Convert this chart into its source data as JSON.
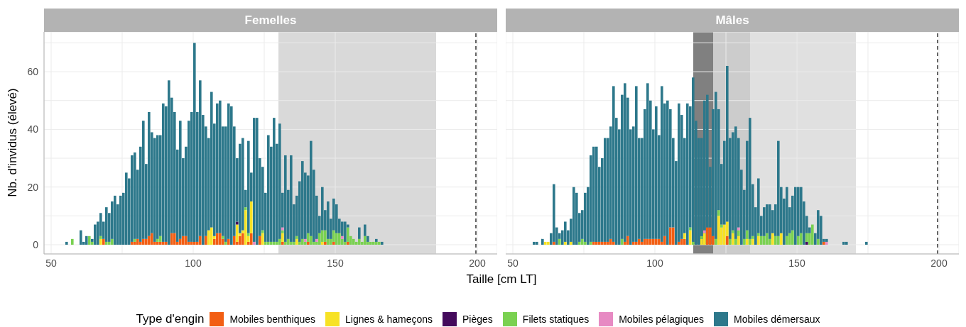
{
  "chart_data": [
    {
      "type": "bar",
      "title": "Femelles",
      "xlabel": "Taille [cm LT]",
      "ylabel": "Nb. d'invidus (élevé)",
      "legend": "bottom",
      "legend_title": "Type d'engin",
      "stacked": true,
      "grid": true,
      "x": [
        55.5,
        56.5,
        57.5,
        58.5,
        59.5,
        60.5,
        61.5,
        62.5,
        63.5,
        64.5,
        65.5,
        66.5,
        67.5,
        68.5,
        69.5,
        70.5,
        71.5,
        72.5,
        73.5,
        74.5,
        75.5,
        76.5,
        77.5,
        78.5,
        79.5,
        80.5,
        81.5,
        82.5,
        83.5,
        84.5,
        85.5,
        86.5,
        87.5,
        88.5,
        89.5,
        90.5,
        91.5,
        92.5,
        93.5,
        94.5,
        95.5,
        96.5,
        97.5,
        98.5,
        99.5,
        100.5,
        101.5,
        102.5,
        103.5,
        104.5,
        105.5,
        106.5,
        107.5,
        108.5,
        109.5,
        110.5,
        111.5,
        112.5,
        113.5,
        114.5,
        115.5,
        116.5,
        117.5,
        118.5,
        119.5,
        120.5,
        121.5,
        122.5,
        123.5,
        124.5,
        125.5,
        126.5,
        127.5,
        128.5,
        129.5,
        130.5,
        131.5,
        132.5,
        133.5,
        134.5,
        135.5,
        136.5,
        137.5,
        138.5,
        139.5,
        140.5,
        141.5,
        142.5,
        143.5,
        144.5,
        145.5,
        146.5,
        147.5,
        148.5,
        149.5,
        150.5,
        151.5,
        152.5,
        153.5,
        154.5,
        155.5,
        156.5,
        157.5,
        158.5,
        159.5,
        160.5,
        161.5,
        162.5,
        163.5,
        164.5,
        165.5,
        166.5
      ],
      "xlim": [
        47.5,
        207
      ],
      "xticks": [
        50,
        {
          "value": 75,
          "label": null
        },
        100,
        {
          "value": 125,
          "label": null
        },
        150,
        200
      ],
      "ylim": [
        -3.2,
        73.8
      ],
      "yticks": [
        0,
        {
          "value": 10,
          "label": null
        },
        20,
        {
          "value": 30,
          "label": null
        },
        40,
        {
          "value": 50,
          "label": null
        },
        60,
        {
          "value": 70,
          "label": null
        }
      ],
      "bands": [
        {
          "axis": "x",
          "from": 130,
          "to": 185.5,
          "color": "#d9d9d9"
        }
      ],
      "ref_lines": [
        {
          "axis": "x",
          "value": 199.5,
          "color": "#333333",
          "line_style": "dashed"
        }
      ],
      "series": [
        {
          "name": "Mobiles benthiques",
          "color": "#f25e13",
          "values": [
            0,
            0,
            0,
            0,
            0,
            0,
            0,
            0,
            0,
            0,
            0,
            0,
            0,
            2,
            0,
            0,
            0,
            0,
            0,
            0,
            0,
            0,
            0,
            1,
            1,
            2,
            1,
            2,
            2,
            3,
            4,
            1,
            1,
            1,
            1,
            1,
            0,
            4,
            4,
            1,
            2,
            3,
            3,
            1,
            1,
            1,
            1,
            3,
            0,
            3,
            0,
            0,
            2,
            4,
            4,
            2,
            0,
            2,
            0,
            3,
            1,
            3,
            4,
            0,
            1,
            4,
            0,
            0,
            3,
            0,
            0,
            0,
            0,
            0,
            0,
            0,
            1,
            0,
            0,
            0,
            0,
            0,
            0,
            0,
            0,
            1,
            0,
            0,
            0,
            0,
            0,
            1,
            0,
            0,
            1,
            0,
            0,
            0,
            0,
            1,
            0,
            0,
            0,
            0,
            0,
            0,
            0,
            0,
            0,
            0,
            0,
            0
          ]
        },
        {
          "name": "Lignes & hameçons",
          "color": "#f7e225",
          "values": [
            0,
            0,
            0,
            0,
            0,
            0,
            0,
            0,
            0,
            0,
            0,
            0,
            2,
            0,
            0,
            0,
            0,
            0,
            0,
            0,
            0,
            0,
            0,
            0,
            0,
            0,
            0,
            0,
            0,
            0,
            0,
            0,
            0,
            0,
            0,
            0,
            0,
            0,
            0,
            0,
            0,
            0,
            0,
            0,
            0,
            0,
            0,
            0,
            0,
            0,
            5,
            6,
            1,
            0,
            0,
            0,
            0,
            0,
            0,
            0,
            6,
            1,
            1,
            12,
            2,
            11,
            0,
            0,
            0,
            4,
            0,
            0,
            0,
            0,
            0,
            0,
            3,
            0,
            0,
            0,
            0,
            2,
            0,
            0,
            0,
            0,
            0,
            0,
            0,
            0,
            1,
            0,
            0,
            0,
            0,
            0,
            0,
            0,
            0,
            0,
            0,
            0,
            0,
            0,
            0,
            0,
            0,
            0,
            0,
            0,
            0,
            0
          ]
        },
        {
          "name": "Pièges",
          "color": "#440a5c",
          "values": [
            0,
            0,
            0,
            0,
            0,
            0,
            0,
            0,
            0,
            0,
            0,
            0,
            0,
            0,
            0,
            0,
            0,
            0,
            0,
            0,
            0,
            0,
            0,
            0,
            0,
            0,
            0,
            0,
            0,
            0,
            0,
            0,
            0,
            0,
            0,
            0,
            0,
            0,
            0,
            0,
            0,
            0,
            0,
            0,
            0,
            0,
            0,
            0,
            0,
            0,
            0,
            0,
            0,
            0,
            0,
            0,
            0,
            0,
            0,
            0,
            1,
            0,
            0,
            0,
            0,
            0,
            0,
            0,
            0,
            0,
            0,
            0,
            0,
            0,
            0,
            0,
            0,
            0,
            0,
            0,
            0,
            0,
            0,
            0,
            0,
            0,
            0,
            0,
            0,
            0,
            0,
            0,
            0,
            0,
            0,
            0,
            0,
            0,
            0,
            0,
            0,
            0,
            0,
            0,
            0,
            0,
            0,
            0,
            0,
            0,
            0,
            0
          ]
        },
        {
          "name": "Filets statiques",
          "color": "#7ad151",
          "values": [
            0,
            0,
            2,
            0,
            0,
            0,
            0,
            0,
            3,
            1,
            0,
            0,
            1,
            0,
            1,
            1,
            2,
            0,
            0,
            0,
            0,
            0,
            0,
            0,
            1,
            0,
            0,
            0,
            0,
            0,
            0,
            0,
            1,
            2,
            0,
            0,
            0,
            0,
            0,
            0,
            0,
            0,
            0,
            0,
            0,
            0,
            0,
            0,
            0,
            0,
            0,
            0,
            0,
            0,
            0,
            1,
            1,
            0,
            0,
            0,
            0,
            0,
            0,
            1,
            1,
            0,
            0,
            0,
            0,
            1,
            1,
            1,
            1,
            1,
            1,
            2,
            1,
            1,
            2,
            1,
            1,
            1,
            1,
            2,
            1,
            3,
            3,
            1,
            1,
            4,
            4,
            4,
            2,
            2,
            4,
            4,
            4,
            2,
            1,
            5,
            3,
            2,
            1,
            2,
            1,
            3,
            1,
            1,
            1,
            1,
            1,
            0
          ]
        },
        {
          "name": "Mobiles pélagiques",
          "color": "#e78ac3",
          "values": [
            0,
            0,
            0,
            0,
            0,
            0,
            0,
            0,
            0,
            0,
            0,
            0,
            0,
            0,
            0,
            0,
            0,
            0,
            0,
            0,
            0,
            0,
            0,
            0,
            0,
            0,
            0,
            0,
            0,
            0,
            0,
            0,
            0,
            0,
            0,
            0,
            0,
            0,
            0,
            0,
            0,
            0,
            0,
            0,
            0,
            0,
            0,
            0,
            0,
            0,
            0,
            0,
            0,
            0,
            0,
            0,
            0,
            0,
            0,
            0,
            0,
            0,
            0,
            0,
            0,
            0,
            1,
            0,
            0,
            0,
            0,
            0,
            0,
            0,
            0,
            0,
            1,
            0,
            0,
            0,
            0,
            0,
            0,
            0,
            1,
            0,
            0,
            0,
            1,
            0,
            0,
            0,
            0,
            0,
            0,
            0,
            0,
            1,
            0,
            0,
            0,
            0,
            0,
            0,
            0,
            0,
            0,
            0,
            0,
            0,
            0,
            0
          ]
        },
        {
          "name": "Mobiles démersaux",
          "color": "#2d788b",
          "values": [
            1,
            0,
            0,
            0,
            0,
            5,
            1,
            3,
            0,
            1,
            7,
            8,
            8,
            6,
            12,
            10,
            13,
            17,
            14,
            17,
            18,
            25,
            23,
            30,
            30,
            24,
            33,
            41,
            26,
            43,
            35,
            36,
            36,
            35,
            48,
            47,
            57,
            47,
            42,
            32,
            41,
            27,
            31,
            42,
            45,
            69,
            45,
            54,
            45,
            38,
            32,
            47,
            39,
            45,
            46,
            38,
            40,
            47,
            48,
            38,
            22,
            31,
            32,
            6,
            32,
            10,
            43,
            44,
            27,
            22,
            17,
            37,
            33,
            43,
            34,
            40,
            12,
            30,
            17,
            30,
            13,
            14,
            21,
            27,
            23,
            20,
            33,
            25,
            15,
            6,
            15,
            7,
            13,
            7,
            11,
            10,
            5,
            5,
            7,
            1,
            0,
            0,
            0,
            4,
            0,
            4,
            2,
            0,
            0,
            1,
            0,
            1
          ]
        }
      ]
    },
    {
      "type": "bar",
      "title": "Mâles",
      "stacked": true,
      "grid": true,
      "tick_labels": "x",
      "x": [
        57.5,
        58.5,
        59.5,
        60.5,
        61.5,
        62.5,
        63.5,
        64.5,
        65.5,
        66.5,
        67.5,
        68.5,
        69.5,
        70.5,
        71.5,
        72.5,
        73.5,
        74.5,
        75.5,
        76.5,
        77.5,
        78.5,
        79.5,
        80.5,
        81.5,
        82.5,
        83.5,
        84.5,
        85.5,
        86.5,
        87.5,
        88.5,
        89.5,
        90.5,
        91.5,
        92.5,
        93.5,
        94.5,
        95.5,
        96.5,
        97.5,
        98.5,
        99.5,
        100.5,
        101.5,
        102.5,
        103.5,
        104.5,
        105.5,
        106.5,
        107.5,
        108.5,
        109.5,
        110.5,
        111.5,
        112.5,
        113.5,
        114.5,
        115.5,
        116.5,
        117.5,
        118.5,
        119.5,
        120.5,
        121.5,
        122.5,
        123.5,
        124.5,
        125.5,
        126.5,
        127.5,
        128.5,
        129.5,
        130.5,
        131.5,
        132.5,
        133.5,
        134.5,
        135.5,
        136.5,
        137.5,
        138.5,
        139.5,
        140.5,
        141.5,
        142.5,
        143.5,
        144.5,
        145.5,
        146.5,
        147.5,
        148.5,
        149.5,
        150.5,
        151.5,
        152.5,
        153.5,
        154.5,
        155.5,
        156.5,
        157.5,
        158.5,
        159.5,
        160.5,
        161.5,
        162.5,
        163.5,
        164.5,
        165.5,
        166.5,
        167.5,
        168.5,
        169.5,
        170.5,
        171.5,
        172.5,
        173.5,
        174.5
      ],
      "xlim": [
        47.5,
        207
      ],
      "xticks": [
        50,
        {
          "value": 75,
          "label": null
        },
        100,
        {
          "value": 125,
          "label": null
        },
        150,
        {
          "value": 175,
          "label": null
        },
        200
      ],
      "ylim": [
        -3.2,
        73.8
      ],
      "yticks": [
        0,
        {
          "value": 10,
          "label": null
        },
        20,
        {
          "value": 30,
          "label": null
        },
        40,
        {
          "value": 50,
          "label": null
        },
        60,
        {
          "value": 70,
          "label": null
        }
      ],
      "bands": [
        {
          "axis": "x",
          "from": 113.5,
          "to": 120.5,
          "color": "#808080"
        },
        {
          "axis": "x",
          "from": 120.5,
          "to": 133.5,
          "color": "#cccccc"
        },
        {
          "axis": "x",
          "from": 133.5,
          "to": 170.75,
          "color": "#e0e0e0"
        }
      ],
      "ref_lines": [
        {
          "axis": "x",
          "value": 199.5,
          "color": "#333333",
          "line_style": "dashed"
        }
      ],
      "series": [
        {
          "color": "#f25e13",
          "values": [
            0,
            0,
            0,
            0,
            0,
            0,
            0,
            1,
            0,
            0,
            0,
            0,
            0,
            0,
            0,
            0,
            0,
            0,
            0,
            0,
            0,
            1,
            1,
            1,
            1,
            1,
            1,
            2,
            1,
            0,
            0,
            0,
            1,
            3,
            0,
            1,
            1,
            2,
            1,
            2,
            2,
            2,
            2,
            2,
            2,
            1,
            3,
            0,
            6,
            6,
            0,
            1,
            2,
            2,
            0,
            0,
            0,
            0,
            0,
            0,
            0,
            6,
            6,
            3,
            0,
            0,
            0,
            0,
            3,
            0,
            0,
            0,
            0,
            0,
            0,
            0,
            0,
            0,
            0,
            0,
            0,
            0,
            0,
            0,
            0,
            0,
            0,
            0,
            0,
            0,
            0,
            0,
            0,
            0,
            0,
            0,
            0,
            0,
            0,
            0,
            0,
            0,
            1,
            0,
            0,
            0,
            0,
            0,
            0,
            0,
            0,
            0,
            0,
            0,
            0,
            0,
            0,
            0
          ]
        },
        {
          "color": "#f7e225",
          "values": [
            0,
            0,
            0,
            0,
            1,
            1,
            0,
            0,
            0,
            0,
            0,
            1,
            0,
            1,
            0,
            0,
            0,
            0,
            0,
            0,
            0,
            0,
            0,
            0,
            0,
            0,
            0,
            0,
            0,
            0,
            0,
            0,
            0,
            0,
            0,
            0,
            0,
            0,
            0,
            0,
            0,
            0,
            0,
            0,
            0,
            0,
            0,
            0,
            0,
            0,
            0,
            0,
            0,
            2,
            0,
            5,
            0,
            0,
            0,
            2,
            4,
            0,
            0,
            0,
            0,
            10,
            6,
            7,
            5,
            0,
            4,
            0,
            3,
            0,
            0,
            2,
            0,
            2,
            0,
            3,
            0,
            0,
            0,
            0,
            4,
            0,
            0,
            4,
            0,
            0,
            0,
            0,
            0,
            0,
            0,
            0,
            0,
            0,
            0,
            0,
            0,
            0,
            0,
            0,
            0,
            0,
            0,
            0,
            0,
            0,
            0,
            0,
            0,
            0,
            0,
            0,
            0,
            0
          ]
        },
        {
          "color": "#440a5c",
          "values": [
            0,
            0,
            0,
            0,
            0,
            0,
            0,
            0,
            0,
            0,
            0,
            0,
            0,
            0,
            0,
            0,
            0,
            0,
            0,
            0,
            0,
            0,
            0,
            0,
            0,
            0,
            0,
            0,
            0,
            0,
            0,
            0,
            0,
            0,
            0,
            0,
            0,
            0,
            0,
            0,
            0,
            0,
            0,
            0,
            0,
            0,
            0,
            0,
            0,
            0,
            0,
            0,
            0,
            0,
            0,
            0,
            0,
            0,
            0,
            0,
            0,
            0,
            0,
            0,
            0,
            0,
            0,
            0,
            0,
            0,
            0,
            0,
            0,
            0,
            0,
            0,
            0,
            0,
            0,
            0,
            0,
            0,
            0,
            0,
            0,
            0,
            0,
            0,
            0,
            0,
            0,
            0,
            0,
            0,
            0,
            0,
            1,
            0,
            0,
            0,
            0,
            0,
            0,
            0,
            0,
            0,
            0,
            0,
            0,
            0,
            0,
            0,
            0,
            0,
            0,
            0,
            0,
            0
          ]
        },
        {
          "color": "#7ad151",
          "values": [
            0,
            0,
            0,
            0,
            0,
            0,
            0,
            0,
            0,
            2,
            0,
            0,
            0,
            0,
            0,
            0,
            1,
            2,
            1,
            0,
            1,
            0,
            0,
            0,
            0,
            0,
            0,
            0,
            0,
            0,
            0,
            2,
            0,
            0,
            0,
            0,
            0,
            0,
            0,
            0,
            0,
            0,
            0,
            0,
            0,
            0,
            0,
            0,
            0,
            0,
            0,
            0,
            0,
            0,
            0,
            1,
            1,
            0,
            0,
            1,
            0,
            0,
            0,
            0,
            2,
            2,
            1,
            0,
            0,
            2,
            1,
            2,
            2,
            0,
            2,
            3,
            2,
            1,
            0,
            1,
            3,
            3,
            4,
            2,
            0,
            3,
            3,
            0,
            0,
            3,
            4,
            5,
            0,
            3,
            4,
            0,
            3,
            4,
            7,
            0,
            2,
            0,
            0,
            0,
            0,
            0,
            0,
            0,
            0,
            0,
            0,
            0,
            0,
            0,
            0,
            0,
            0,
            0
          ]
        },
        {
          "color": "#e78ac3",
          "values": [
            0,
            0,
            0,
            0,
            0,
            0,
            0,
            0,
            0,
            0,
            0,
            0,
            0,
            0,
            0,
            0,
            0,
            0,
            0,
            0,
            0,
            0,
            0,
            0,
            0,
            0,
            0,
            0,
            0,
            0,
            0,
            0,
            0,
            0,
            0,
            0,
            0,
            0,
            0,
            0,
            0,
            0,
            0,
            0,
            0,
            0,
            0,
            0,
            0,
            0,
            0,
            0,
            0,
            0,
            0,
            0,
            0,
            0,
            0,
            0,
            1,
            0,
            0,
            0,
            0,
            0,
            0,
            0,
            0,
            0,
            0,
            0,
            1,
            0,
            0,
            0,
            0,
            0,
            0,
            0,
            0,
            0,
            0,
            0,
            0,
            0,
            0,
            0,
            0,
            0,
            0,
            0,
            0,
            0,
            0,
            0,
            0,
            0,
            0,
            0,
            0,
            0,
            0,
            1,
            0,
            0,
            0,
            0,
            0,
            0,
            0,
            0,
            0,
            0,
            0,
            0,
            0,
            0
          ]
        },
        {
          "color": "#2d788b",
          "values": [
            1,
            1,
            0,
            2,
            0,
            0,
            4,
            20,
            6,
            2,
            5,
            7,
            5,
            8,
            20,
            18,
            10,
            10,
            17,
            20,
            30,
            33,
            33,
            26,
            29,
            36,
            36,
            39,
            54,
            44,
            40,
            50,
            55,
            48,
            40,
            40,
            54,
            35,
            36,
            45,
            54,
            48,
            38,
            46,
            36,
            54,
            46,
            50,
            41,
            31,
            29,
            48,
            43,
            33,
            49,
            42,
            57,
            43,
            37,
            34,
            45,
            46,
            21,
            44,
            51,
            35,
            21,
            29,
            54,
            35,
            34,
            39,
            31,
            26,
            17,
            31,
            42,
            18,
            13,
            19,
            7,
            10,
            10,
            12,
            8,
            11,
            33,
            16,
            16,
            17,
            9,
            12,
            20,
            17,
            16,
            15,
            6,
            2,
            0,
            4,
            10,
            10,
            1,
            1,
            0,
            0,
            0,
            0,
            0,
            1,
            1,
            0,
            0,
            0,
            0,
            0,
            0,
            1
          ]
        }
      ]
    }
  ]
}
